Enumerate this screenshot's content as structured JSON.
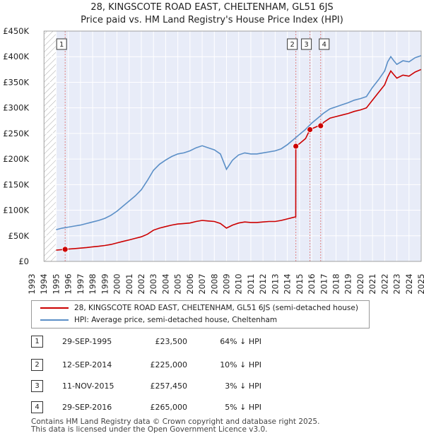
{
  "title_line1": "28, KINGSCOTE ROAD EAST, CHELTENHAM, GL51 6JS",
  "title_line2": "Price paid vs. HM Land Registry's House Price Index (HPI)",
  "chart_data": {
    "type": "line",
    "x_range": [
      1993,
      2025
    ],
    "ylim": [
      0,
      450000
    ],
    "y_ticks": [
      0,
      50000,
      100000,
      150000,
      200000,
      250000,
      300000,
      350000,
      400000,
      450000
    ],
    "y_tick_labels": [
      "£0",
      "£50K",
      "£100K",
      "£150K",
      "£200K",
      "£250K",
      "£300K",
      "£350K",
      "£400K",
      "£450K"
    ],
    "x_ticks": [
      1993,
      1994,
      1995,
      1996,
      1997,
      1998,
      1999,
      2000,
      2001,
      2002,
      2003,
      2004,
      2005,
      2006,
      2007,
      2008,
      2009,
      2010,
      2011,
      2012,
      2013,
      2014,
      2015,
      2016,
      2017,
      2018,
      2019,
      2020,
      2021,
      2022,
      2023,
      2024,
      2025
    ],
    "x_tick_labels": [
      "1993",
      "1994",
      "1995",
      "1996",
      "1997",
      "1998",
      "1999",
      "2000",
      "2001",
      "2002",
      "2003",
      "2004",
      "2005",
      "2006",
      "2007",
      "2008",
      "2009",
      "2010",
      "2011",
      "2012",
      "2013",
      "2014",
      "2015",
      "2016",
      "2017",
      "2018",
      "2019",
      "2020",
      "2021",
      "2022",
      "2023",
      "2024",
      "2025"
    ],
    "hatched_until": 1995.0,
    "grid": true,
    "series": [
      {
        "name": "hpi",
        "color": "#5b8fc7",
        "x": [
          1995.0,
          1995.5,
          1996.0,
          1996.5,
          1997.0,
          1997.5,
          1998.0,
          1998.5,
          1999.0,
          1999.5,
          2000.0,
          2000.5,
          2001.0,
          2001.5,
          2002.0,
          2002.5,
          2003.0,
          2003.5,
          2004.0,
          2004.5,
          2005.0,
          2005.5,
          2006.0,
          2006.5,
          2007.0,
          2007.5,
          2008.0,
          2008.5,
          2009.0,
          2009.5,
          2010.0,
          2010.5,
          2011.0,
          2011.5,
          2012.0,
          2012.5,
          2013.0,
          2013.5,
          2014.0,
          2014.5,
          2015.0,
          2015.5,
          2016.0,
          2016.5,
          2017.0,
          2017.5,
          2018.0,
          2018.5,
          2019.0,
          2019.5,
          2020.0,
          2020.5,
          2021.0,
          2021.5,
          2022.0,
          2022.25,
          2022.5,
          2022.75,
          2023.0,
          2023.5,
          2024.0,
          2024.5,
          2025.0
        ],
        "values": [
          62000,
          65000,
          67000,
          69000,
          71000,
          74000,
          77000,
          80000,
          84000,
          90000,
          98000,
          108000,
          118000,
          128000,
          140000,
          158000,
          178000,
          190000,
          198000,
          205000,
          210000,
          212000,
          216000,
          222000,
          226000,
          222000,
          218000,
          210000,
          180000,
          198000,
          208000,
          212000,
          210000,
          210000,
          212000,
          214000,
          216000,
          220000,
          228000,
          238000,
          248000,
          258000,
          270000,
          280000,
          290000,
          298000,
          302000,
          306000,
          310000,
          315000,
          318000,
          322000,
          340000,
          355000,
          372000,
          390000,
          400000,
          392000,
          385000,
          392000,
          390000,
          398000,
          402000
        ]
      },
      {
        "name": "price_paid",
        "color": "#cc0000",
        "x": [
          1995.0,
          1995.74,
          1996.0,
          1996.5,
          1997.0,
          1997.5,
          1998.0,
          1998.5,
          1999.0,
          1999.5,
          2000.0,
          2000.5,
          2001.0,
          2001.5,
          2002.0,
          2002.5,
          2003.0,
          2003.5,
          2004.0,
          2004.5,
          2005.0,
          2005.5,
          2006.0,
          2006.5,
          2007.0,
          2007.5,
          2008.0,
          2008.5,
          2009.0,
          2009.5,
          2010.0,
          2010.5,
          2011.0,
          2011.5,
          2012.0,
          2012.5,
          2013.0,
          2013.5,
          2014.0,
          2014.5,
          2014.69,
          2014.7,
          2015.0,
          2015.5,
          2015.86,
          2016.0,
          2016.5,
          2016.74,
          2017.0,
          2017.5,
          2018.0,
          2018.5,
          2019.0,
          2019.5,
          2020.0,
          2020.5,
          2021.0,
          2021.5,
          2022.0,
          2022.25,
          2022.5,
          2022.75,
          2023.0,
          2023.5,
          2024.0,
          2024.5,
          2025.0
        ],
        "values": [
          22000,
          23500,
          24000,
          25000,
          26000,
          27000,
          28500,
          29500,
          31000,
          33000,
          36000,
          39000,
          42000,
          45000,
          48000,
          53000,
          61000,
          65000,
          68000,
          71000,
          73000,
          74000,
          75000,
          78000,
          80000,
          79000,
          78000,
          74000,
          65000,
          71000,
          75000,
          77000,
          76000,
          76000,
          77000,
          78000,
          78000,
          80000,
          83000,
          86000,
          87000,
          225000,
          230000,
          240000,
          257450,
          259000,
          264000,
          265000,
          272000,
          280000,
          283000,
          286000,
          289000,
          293000,
          296000,
          300000,
          315000,
          330000,
          345000,
          360000,
          372000,
          365000,
          358000,
          364000,
          362000,
          370000,
          375000
        ]
      }
    ],
    "transactions": [
      {
        "label": "1",
        "x": 1995.74,
        "value": 23500
      },
      {
        "label": "2",
        "x": 2014.7,
        "value": 225000
      },
      {
        "label": "3",
        "x": 2015.86,
        "value": 257450
      },
      {
        "label": "4",
        "x": 2016.74,
        "value": 265000
      }
    ]
  },
  "legend": {
    "red_label": "28, KINGSCOTE ROAD EAST, CHELTENHAM, GL51 6JS (semi-detached house)",
    "blue_label": "HPI: Average price, semi-detached house, Cheltenham"
  },
  "table": [
    {
      "num": "1",
      "date": "29-SEP-1995",
      "price": "£23,500",
      "hpi": "64% ↓ HPI"
    },
    {
      "num": "2",
      "date": "12-SEP-2014",
      "price": "£225,000",
      "hpi": "10% ↓ HPI"
    },
    {
      "num": "3",
      "date": "11-NOV-2015",
      "price": "£257,450",
      "hpi": "3% ↓ HPI"
    },
    {
      "num": "4",
      "date": "29-SEP-2016",
      "price": "£265,000",
      "hpi": "5% ↓ HPI"
    }
  ],
  "footer": {
    "line1": "Contains HM Land Registry data © Crown copyright and database right 2025.",
    "line2": "This data is licensed under the Open Government Licence v3.0."
  }
}
